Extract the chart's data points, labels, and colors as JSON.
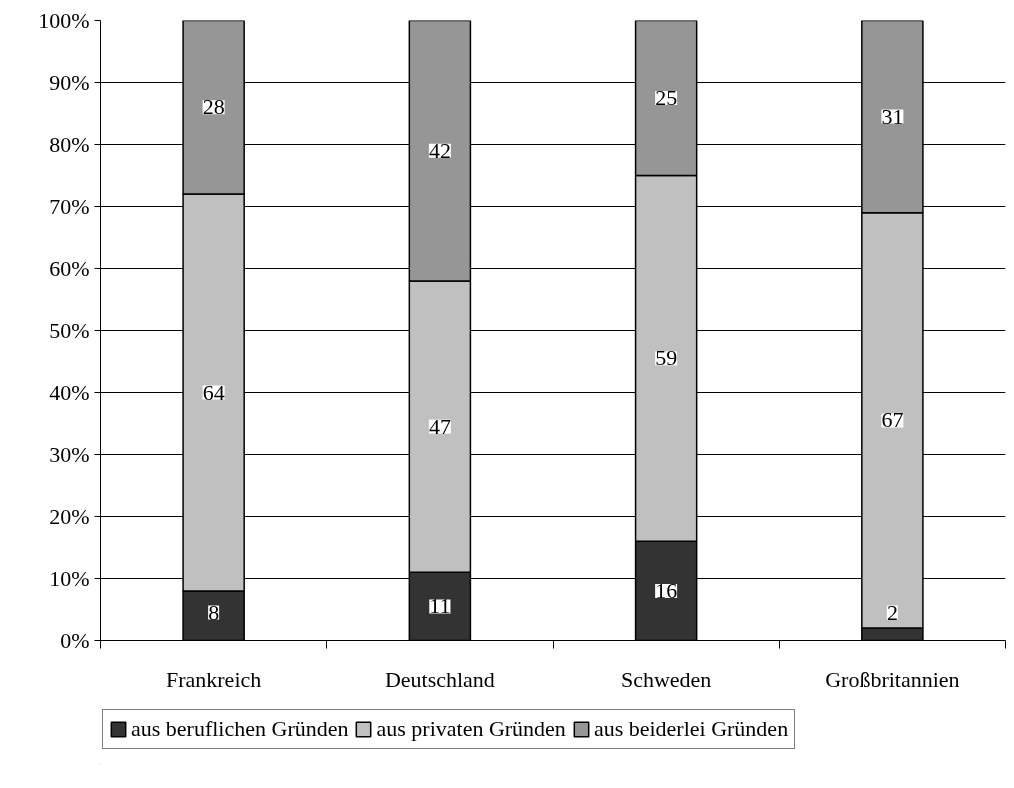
{
  "chart_data": {
    "type": "bar",
    "stacked": true,
    "categories": [
      "Frankreich",
      "Deutschland",
      "Schweden",
      "Großbritannien"
    ],
    "series": [
      {
        "name": "aus beruflichen Gründen",
        "color": "#333333",
        "values": [
          8,
          11,
          16,
          2
        ]
      },
      {
        "name": "aus privaten Gründen",
        "color": "#c0c0c0",
        "values": [
          64,
          47,
          59,
          67
        ]
      },
      {
        "name": "aus beiderlei Gründen",
        "color": "#969696",
        "values": [
          28,
          42,
          25,
          31
        ]
      }
    ],
    "ylim": [
      0,
      100
    ],
    "yticks": [
      {
        "value": 0,
        "label": "0%"
      },
      {
        "value": 10,
        "label": "10%"
      },
      {
        "value": 20,
        "label": "20%"
      },
      {
        "value": 30,
        "label": "30%"
      },
      {
        "value": 40,
        "label": "40%"
      },
      {
        "value": 50,
        "label": "50%"
      },
      {
        "value": 60,
        "label": "60%"
      },
      {
        "value": 70,
        "label": "70%"
      },
      {
        "value": 80,
        "label": "80%"
      },
      {
        "value": 90,
        "label": "90%"
      },
      {
        "value": 100,
        "label": "100%"
      }
    ],
    "grid": "y",
    "legend": "bottom",
    "data_labels": true
  }
}
